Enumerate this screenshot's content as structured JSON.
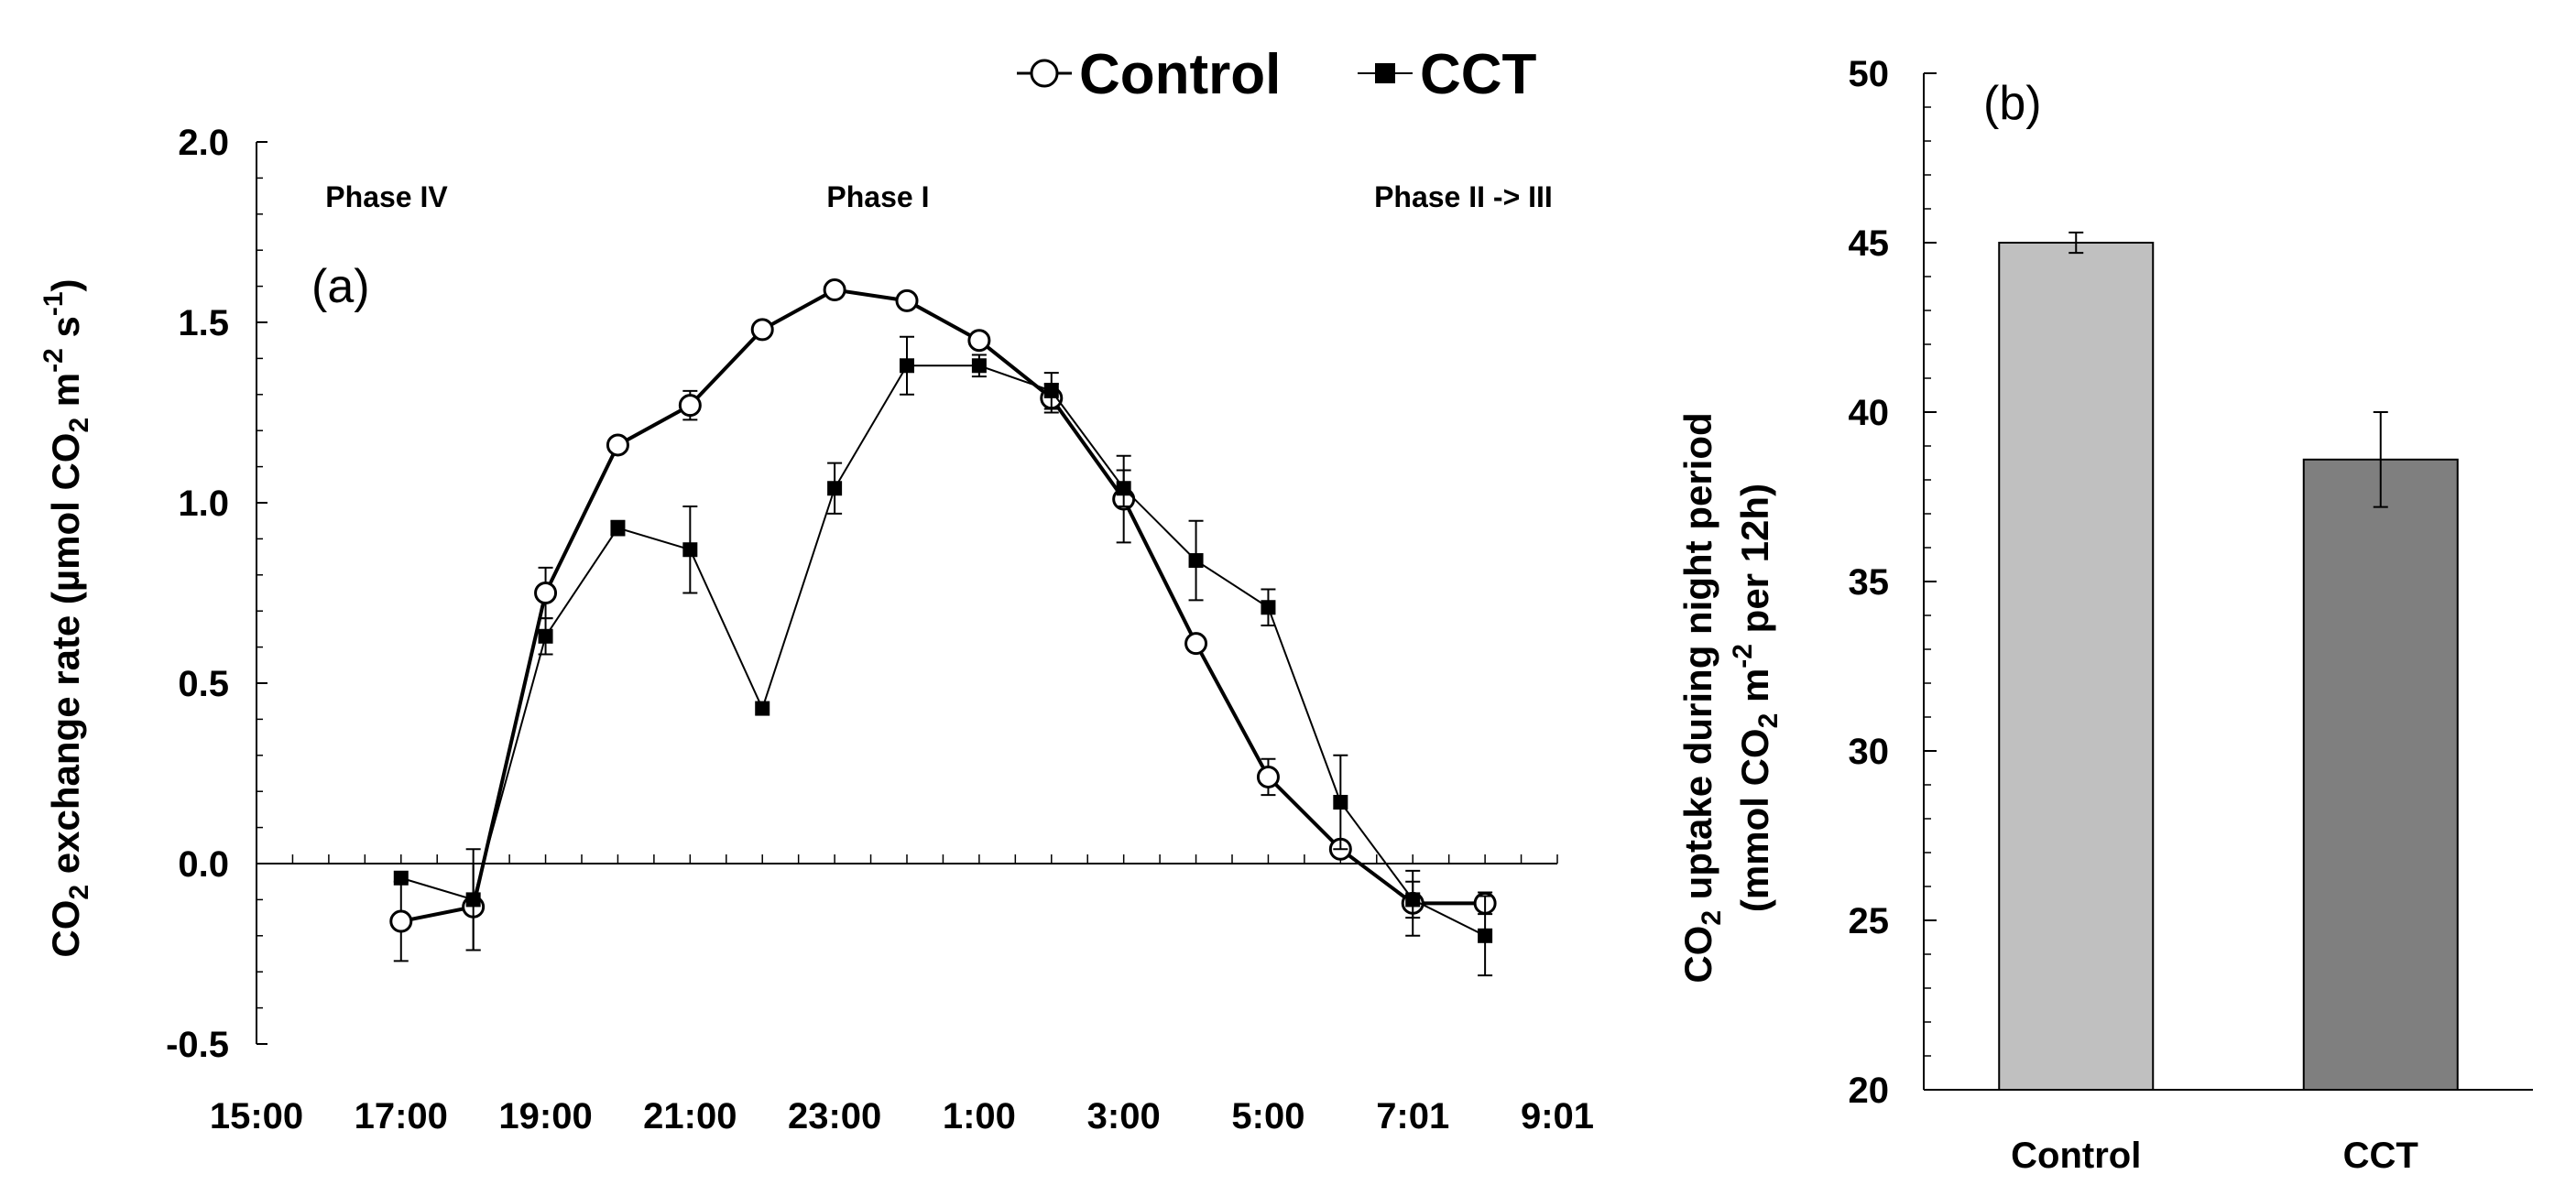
{
  "chart_data": [
    {
      "type": "line",
      "panel_label": "(a)",
      "ylabel": {
        "prefix": "CO",
        "sub": "2",
        "mid": " exchange rate (µmol CO",
        "sub2": "2",
        "mid2": " m",
        "sup": "-2",
        "mid3": " s",
        "sup2": "-1",
        "suffix": ")"
      },
      "ylim": [
        -0.5,
        2.0
      ],
      "yticks": [
        {
          "v": 2.0,
          "label": "2.0"
        },
        {
          "v": 1.5,
          "label": "1.5"
        },
        {
          "v": 1.0,
          "label": "1.0"
        },
        {
          "v": 0.5,
          "label": "0.5"
        },
        {
          "v": 0.0,
          "label": "0.0"
        },
        {
          "v": -0.5,
          "label": "-0.5"
        }
      ],
      "xlim": [
        0,
        18
      ],
      "xticks": [
        {
          "v": 0,
          "label": "15:00"
        },
        {
          "v": 2,
          "label": "17:00"
        },
        {
          "v": 4,
          "label": "19:00"
        },
        {
          "v": 6,
          "label": "21:00"
        },
        {
          "v": 8,
          "label": "23:00"
        },
        {
          "v": 10,
          "label": "1:00"
        },
        {
          "v": 12,
          "label": "3:00"
        },
        {
          "v": 14,
          "label": "5:00"
        },
        {
          "v": 16,
          "label": "7:01"
        },
        {
          "v": 18,
          "label": "9:01"
        }
      ],
      "annotations": [
        {
          "text": "Phase IV",
          "x": 1.8,
          "y": 1.85
        },
        {
          "text": "Phase I",
          "x": 8.6,
          "y": 1.85
        },
        {
          "text": "Phase II -> III",
          "x": 16.7,
          "y": 1.85
        }
      ],
      "legend": [
        {
          "name": "Control",
          "marker": "open-circle"
        },
        {
          "name": "CCT",
          "marker": "filled-square"
        }
      ],
      "series": [
        {
          "name": "Control",
          "x": [
            2,
            3,
            4,
            5,
            6,
            7,
            8,
            9,
            10,
            11,
            12,
            13,
            14,
            15,
            16,
            17
          ],
          "y": [
            -0.16,
            -0.12,
            0.75,
            1.16,
            1.27,
            1.48,
            1.59,
            1.56,
            1.45,
            1.29,
            1.01,
            0.61,
            0.24,
            0.04,
            -0.11,
            -0.11
          ],
          "err": [
            0.11,
            0.12,
            0.07,
            0.02,
            0.04,
            0.01,
            0.01,
            0.01,
            0.02,
            0.04,
            0.12,
            0.02,
            0.05,
            0.01,
            0.09,
            0.03
          ]
        },
        {
          "name": "CCT",
          "x": [
            2,
            3,
            4,
            5,
            6,
            7,
            8,
            9,
            10,
            11,
            12,
            13,
            14,
            15,
            16,
            17
          ],
          "y": [
            -0.04,
            -0.1,
            0.63,
            0.93,
            0.87,
            0.43,
            1.04,
            1.38,
            1.38,
            1.31,
            1.04,
            0.84,
            0.71,
            0.17,
            -0.1,
            -0.2
          ],
          "err": [
            0.0,
            0.14,
            0.05,
            0.02,
            0.12,
            0.0,
            0.07,
            0.08,
            0.03,
            0.05,
            0.05,
            0.11,
            0.05,
            0.13,
            0.05,
            0.11
          ]
        }
      ]
    },
    {
      "type": "bar",
      "panel_label": "(b)",
      "ylabel": {
        "line1_prefix": "CO",
        "line1_sub": "2",
        "line1_suffix": " uptake during night period",
        "line2_prefix": "(mmol CO",
        "line2_sub": "2",
        "line2_mid": " m",
        "line2_sup": "-2",
        "line2_suffix": " per 12h)"
      },
      "ylim": [
        20,
        50
      ],
      "yticks": [
        {
          "v": 50,
          "label": "50"
        },
        {
          "v": 45,
          "label": "45"
        },
        {
          "v": 40,
          "label": "40"
        },
        {
          "v": 35,
          "label": "35"
        },
        {
          "v": 30,
          "label": "30"
        },
        {
          "v": 25,
          "label": "25"
        },
        {
          "v": 20,
          "label": "20"
        }
      ],
      "categories": [
        "Control",
        "CCT"
      ],
      "values": [
        45.0,
        38.6
      ],
      "errors": [
        0.3,
        1.4
      ],
      "colors": [
        "#c0c0c0",
        "#7f7f7f"
      ]
    }
  ]
}
